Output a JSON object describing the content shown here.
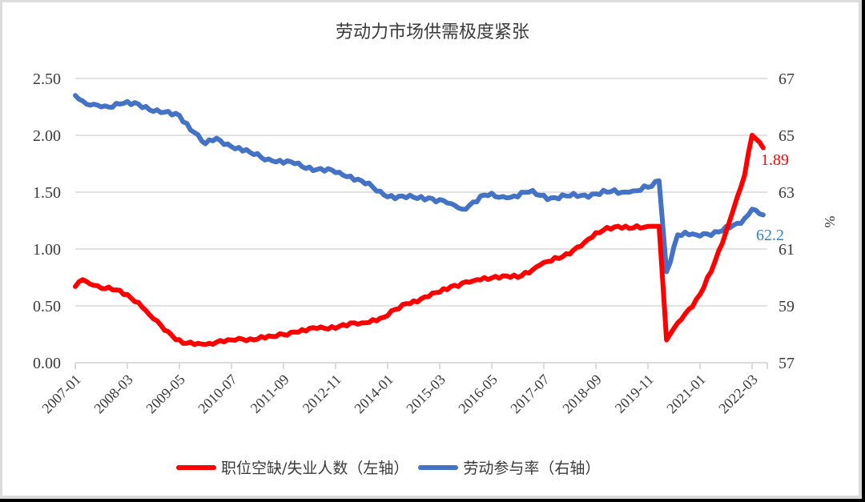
{
  "title": "劳动力市场供需极度紧张",
  "legend": [
    {
      "label": "职位空缺/失业人数（左轴）",
      "color": "#ff0000"
    },
    {
      "label": "劳动参与率（右轴）",
      "color": "#4472c4"
    }
  ],
  "annotations": {
    "ratio_last": "1.89",
    "lfpr_last": "62.2",
    "right_axis_unit": "%"
  },
  "chart_data": {
    "type": "line",
    "title": "劳动力市场供需极度紧张",
    "xlabel": "",
    "ylabel_left": "",
    "ylabel_right": "%",
    "ylim_left": [
      0,
      2.5
    ],
    "ylim_right": [
      57,
      67
    ],
    "yticks_left": [
      "0.00",
      "0.50",
      "1.00",
      "1.50",
      "2.00",
      "2.50"
    ],
    "yticks_right": [
      "57",
      "59",
      "61",
      "63",
      "65",
      "67"
    ],
    "xticks": [
      "2007-01",
      "2008-03",
      "2009-05",
      "2010-07",
      "2011-09",
      "2012-11",
      "2014-01",
      "2015-03",
      "2016-05",
      "2017-07",
      "2018-09",
      "2019-11",
      "2021-01",
      "2022-03"
    ],
    "grid": "horizontal",
    "legend_position": "bottom",
    "x_start": "2007-01",
    "x_end": "2022-06",
    "frequency": "monthly",
    "series": [
      {
        "name": "职位空缺/失业人数（左轴）",
        "axis": "left",
        "color": "#ff0000",
        "points": [
          [
            "2007-01",
            0.67
          ],
          [
            "2007-03",
            0.73
          ],
          [
            "2007-06",
            0.68
          ],
          [
            "2007-09",
            0.65
          ],
          [
            "2007-12",
            0.64
          ],
          [
            "2008-03",
            0.6
          ],
          [
            "2008-06",
            0.53
          ],
          [
            "2008-09",
            0.42
          ],
          [
            "2008-12",
            0.33
          ],
          [
            "2009-03",
            0.24
          ],
          [
            "2009-06",
            0.17
          ],
          [
            "2009-09",
            0.16
          ],
          [
            "2009-12",
            0.16
          ],
          [
            "2010-03",
            0.18
          ],
          [
            "2010-07",
            0.2
          ],
          [
            "2010-12",
            0.21
          ],
          [
            "2011-06",
            0.23
          ],
          [
            "2011-12",
            0.27
          ],
          [
            "2012-06",
            0.3
          ],
          [
            "2012-12",
            0.32
          ],
          [
            "2013-06",
            0.35
          ],
          [
            "2013-12",
            0.4
          ],
          [
            "2014-06",
            0.52
          ],
          [
            "2014-12",
            0.58
          ],
          [
            "2015-06",
            0.67
          ],
          [
            "2015-12",
            0.72
          ],
          [
            "2016-06",
            0.76
          ],
          [
            "2016-12",
            0.75
          ],
          [
            "2017-06",
            0.86
          ],
          [
            "2017-12",
            0.93
          ],
          [
            "2018-06",
            1.06
          ],
          [
            "2018-12",
            1.19
          ],
          [
            "2019-03",
            1.2
          ],
          [
            "2019-06",
            1.18
          ],
          [
            "2019-12",
            1.2
          ],
          [
            "2020-02",
            1.2
          ],
          [
            "2020-04",
            0.2
          ],
          [
            "2020-07",
            0.35
          ],
          [
            "2020-10",
            0.47
          ],
          [
            "2021-01",
            0.6
          ],
          [
            "2021-04",
            0.8
          ],
          [
            "2021-07",
            1.05
          ],
          [
            "2021-10",
            1.35
          ],
          [
            "2022-01",
            1.65
          ],
          [
            "2022-03",
            2.0
          ],
          [
            "2022-06",
            1.89
          ]
        ]
      },
      {
        "name": "劳动参与率（右轴）",
        "axis": "right",
        "color": "#4472c4",
        "points": [
          [
            "2007-01",
            66.4
          ],
          [
            "2007-04",
            66.1
          ],
          [
            "2007-08",
            66.0
          ],
          [
            "2008-01",
            66.1
          ],
          [
            "2008-06",
            66.1
          ],
          [
            "2008-12",
            65.8
          ],
          [
            "2009-05",
            65.7
          ],
          [
            "2009-09",
            65.1
          ],
          [
            "2009-12",
            64.7
          ],
          [
            "2010-03",
            64.9
          ],
          [
            "2010-07",
            64.6
          ],
          [
            "2010-12",
            64.4
          ],
          [
            "2011-06",
            64.1
          ],
          [
            "2011-12",
            64.0
          ],
          [
            "2012-06",
            63.8
          ],
          [
            "2012-12",
            63.7
          ],
          [
            "2013-06",
            63.4
          ],
          [
            "2013-12",
            62.9
          ],
          [
            "2014-06",
            62.8
          ],
          [
            "2014-12",
            62.8
          ],
          [
            "2015-06",
            62.6
          ],
          [
            "2015-09",
            62.4
          ],
          [
            "2016-03",
            62.9
          ],
          [
            "2016-09",
            62.8
          ],
          [
            "2017-03",
            63.0
          ],
          [
            "2017-09",
            62.8
          ],
          [
            "2018-06",
            62.9
          ],
          [
            "2018-12",
            63.0
          ],
          [
            "2019-06",
            63.0
          ],
          [
            "2019-12",
            63.2
          ],
          [
            "2020-02",
            63.4
          ],
          [
            "2020-04",
            60.2
          ],
          [
            "2020-07",
            61.5
          ],
          [
            "2020-12",
            61.5
          ],
          [
            "2021-06",
            61.6
          ],
          [
            "2021-12",
            61.9
          ],
          [
            "2022-03",
            62.4
          ],
          [
            "2022-06",
            62.2
          ]
        ]
      }
    ]
  }
}
